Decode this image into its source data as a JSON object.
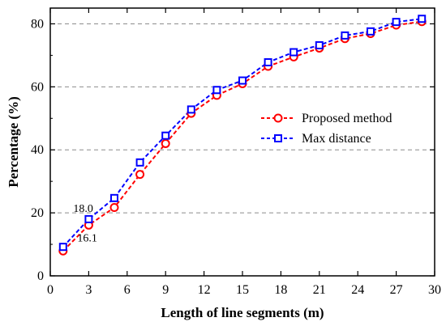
{
  "chart_data": {
    "type": "line",
    "xlabel": "Length of line segments (m)",
    "ylabel": "Percentage (%)",
    "xlim": [
      0,
      30
    ],
    "ylim": [
      0,
      85
    ],
    "xticks": [
      0,
      3,
      6,
      9,
      12,
      15,
      18,
      21,
      24,
      27,
      30
    ],
    "yticks": [
      0,
      20,
      40,
      60,
      80
    ],
    "grid": "horizontal dashed at y = 20, 40, 60, 80",
    "legend_position": "center-right",
    "x": [
      1,
      3,
      5,
      7,
      9,
      11,
      13,
      15,
      17,
      19,
      21,
      23,
      25,
      27,
      29
    ],
    "series": [
      {
        "name": "Proposed method",
        "color": "#ff0000",
        "marker": "circle",
        "values": [
          7.9,
          16.1,
          21.7,
          32.2,
          42.0,
          51.6,
          57.3,
          61.0,
          66.5,
          69.5,
          72.3,
          75.3,
          76.9,
          79.6,
          80.7
        ]
      },
      {
        "name": "Max distance",
        "color": "#0000ff",
        "marker": "square",
        "values": [
          9.2,
          18.0,
          24.7,
          36.0,
          44.5,
          52.8,
          59.0,
          62.0,
          67.8,
          71.0,
          73.2,
          76.3,
          77.6,
          80.6,
          81.6
        ]
      }
    ],
    "annotations": [
      {
        "text": "18.0",
        "x": 3,
        "y": 18.0
      },
      {
        "text": "16.1",
        "x": 3,
        "y": 16.1
      }
    ]
  }
}
